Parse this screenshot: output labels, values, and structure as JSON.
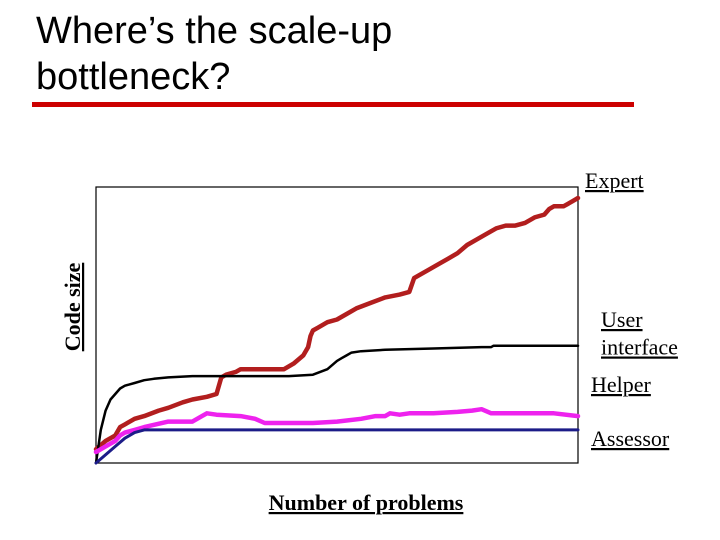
{
  "slide": {
    "title_line1": "Where’s the scale-up",
    "title_line2": "bottleneck?",
    "accent_color": "#cc0000"
  },
  "chart_data": {
    "type": "line",
    "xlabel": "Number of problems",
    "ylabel": "Code size",
    "xlim": [
      0,
      100
    ],
    "ylim": [
      0,
      100
    ],
    "grid": false,
    "series": [
      {
        "name": "Expert",
        "label_line1": "Expert",
        "color": "#b21e1e",
        "label_color": "#b21e1e",
        "x": [
          0,
          2,
          4,
          5,
          6,
          8,
          10,
          13,
          15,
          18,
          20,
          23,
          25,
          26,
          27,
          29,
          30,
          31,
          33,
          35,
          37,
          39,
          41,
          43,
          44,
          44.5,
          45,
          46,
          48,
          50,
          52,
          54,
          57,
          60,
          63,
          65,
          66,
          67,
          69,
          71,
          73,
          75,
          77,
          79,
          81,
          83,
          85,
          87,
          89,
          91,
          93,
          94,
          95,
          97,
          98,
          99,
          100
        ],
        "y": [
          5,
          8,
          10,
          13,
          14,
          16,
          17,
          19,
          20,
          22,
          23,
          24,
          25,
          31,
          32,
          33,
          34,
          34,
          34,
          34,
          34,
          34,
          36,
          39,
          42,
          46,
          48,
          49,
          51,
          52,
          54,
          56,
          58,
          60,
          61,
          62,
          67,
          68,
          70,
          72,
          74,
          76,
          79,
          81,
          83,
          85,
          86,
          86,
          87,
          89,
          90,
          92,
          93,
          93,
          94,
          95,
          96
        ]
      },
      {
        "name": "User interface",
        "label_line1": "User",
        "label_line2": "interface",
        "color": "#000000",
        "label_color": "#000000",
        "x": [
          0,
          1,
          2,
          3,
          4,
          5,
          6,
          8,
          10,
          12,
          15,
          20,
          25,
          30,
          40,
          45,
          48,
          50,
          51,
          52,
          53,
          55,
          60,
          70,
          80,
          82,
          82.5,
          90,
          100
        ],
        "y": [
          0,
          12,
          19,
          23,
          25,
          27,
          28,
          29,
          30,
          30.5,
          31,
          31.5,
          31.5,
          31.5,
          31.5,
          32,
          34,
          37,
          38,
          39,
          40,
          40.5,
          41,
          41.5,
          42,
          42,
          42.5,
          42.5,
          42.5
        ]
      },
      {
        "name": "Helper",
        "label_line1": "Helper",
        "color": "#ee22ee",
        "label_color": "#cc0000",
        "x": [
          0,
          2,
          4,
          5,
          6,
          8,
          10,
          15,
          20,
          22,
          23,
          25,
          30,
          33,
          35,
          40,
          45,
          50,
          55,
          58,
          60,
          61,
          63,
          65,
          70,
          75,
          78,
          80,
          82,
          85,
          90,
          95,
          100
        ],
        "y": [
          4,
          6,
          8,
          10,
          11,
          12,
          13,
          15,
          15,
          17,
          18,
          17.5,
          17,
          16,
          14.5,
          14.5,
          14.5,
          15,
          16,
          17,
          17,
          18,
          17.5,
          18,
          18,
          18.5,
          19,
          19.5,
          18,
          18,
          18,
          18,
          17
        ]
      },
      {
        "name": "Assessor",
        "label_line1": "Assessor",
        "color": "#1c1c88",
        "label_color": "#000000",
        "x": [
          0,
          2,
          4,
          6,
          8,
          10,
          12,
          100
        ],
        "y": [
          0,
          3,
          6,
          9,
          11,
          12,
          12,
          12
        ]
      }
    ]
  }
}
